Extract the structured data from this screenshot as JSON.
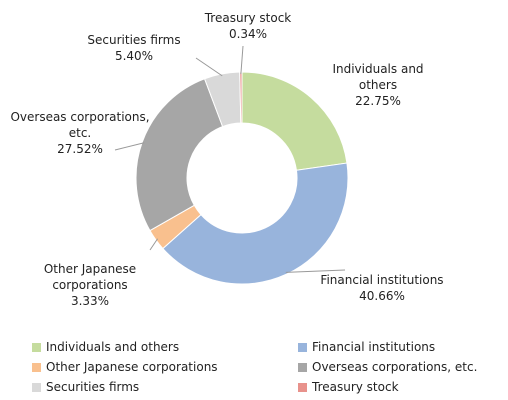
{
  "chart_data": {
    "type": "donut",
    "categories": [
      "Individuals and others",
      "Financial institutions",
      "Other Japanese corporations",
      "Overseas corporations, etc.",
      "Securities firms",
      "Treasury stock"
    ],
    "values": [
      22.75,
      40.66,
      3.33,
      27.52,
      5.4,
      0.34
    ],
    "value_labels": [
      "22.75%",
      "40.66%",
      "3.33%",
      "27.52%",
      "5.40%",
      "0.34%"
    ],
    "colors": [
      "#c5dc9e",
      "#98b4dc",
      "#f9c08e",
      "#a6a6a6",
      "#d9d9d9",
      "#e8928c"
    ],
    "legend": "bottom"
  }
}
